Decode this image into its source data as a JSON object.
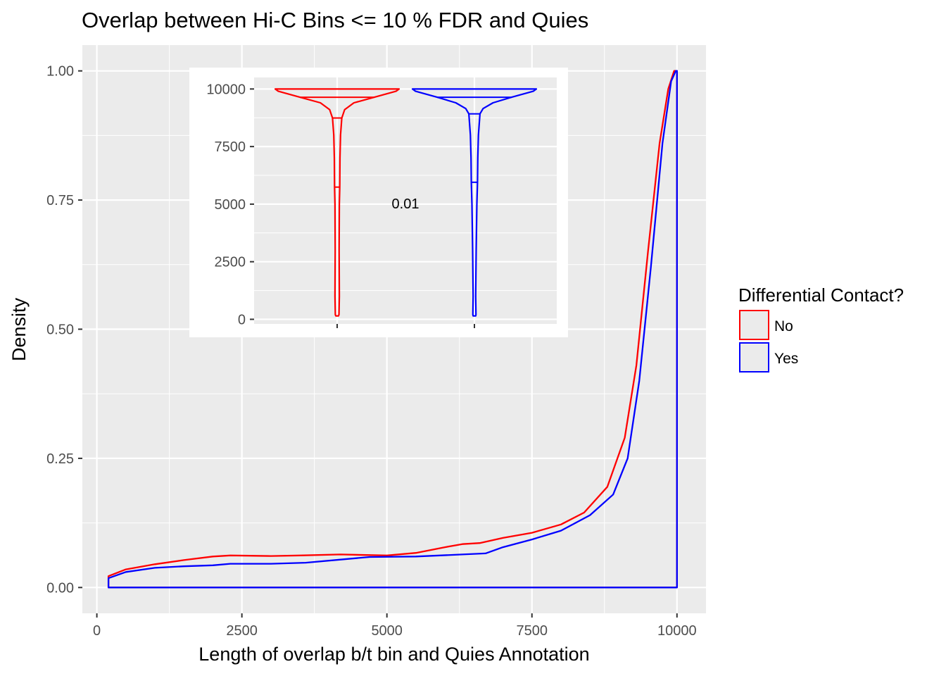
{
  "chart_data": [
    {
      "type": "area",
      "title": "Overlap between Hi-C Bins <= 10 % FDR and Quies",
      "xlabel": "Length of overlap b/t bin and Quies Annotation",
      "ylabel": "Density",
      "xlim": [
        -250,
        10500
      ],
      "ylim": [
        -0.05,
        1.05
      ],
      "x_ticks": [
        0,
        2500,
        5000,
        7500,
        10000
      ],
      "x_tick_labels": [
        "0",
        "2500",
        "5000",
        "7500",
        "10000"
      ],
      "y_ticks": [
        0,
        0.25,
        0.5,
        0.75,
        1.0
      ],
      "y_tick_labels": [
        "0.00",
        "0.25",
        "0.50",
        "0.75",
        "1.00"
      ],
      "grid": true,
      "legend": {
        "title": "Differential Contact?",
        "position": "right",
        "entries": [
          "No",
          "Yes"
        ]
      },
      "series": [
        {
          "name": "No",
          "color": "#ff0000",
          "points": [
            [
              200,
              0.022
            ],
            [
              500,
              0.035
            ],
            [
              1000,
              0.045
            ],
            [
              1500,
              0.053
            ],
            [
              2000,
              0.06
            ],
            [
              2300,
              0.062
            ],
            [
              3000,
              0.061
            ],
            [
              3500,
              0.062
            ],
            [
              4200,
              0.064
            ],
            [
              5000,
              0.062
            ],
            [
              5500,
              0.067
            ],
            [
              6000,
              0.078
            ],
            [
              6300,
              0.084
            ],
            [
              6600,
              0.086
            ],
            [
              7000,
              0.096
            ],
            [
              7500,
              0.106
            ],
            [
              8000,
              0.122
            ],
            [
              8400,
              0.145
            ],
            [
              8800,
              0.195
            ],
            [
              9100,
              0.29
            ],
            [
              9300,
              0.43
            ],
            [
              9500,
              0.65
            ],
            [
              9700,
              0.86
            ],
            [
              9850,
              0.965
            ],
            [
              9950,
              1.0
            ],
            [
              10000,
              1.0
            ],
            [
              10000,
              0.0
            ],
            [
              200,
              0.0
            ]
          ]
        },
        {
          "name": "Yes",
          "color": "#0000ff",
          "points": [
            [
              200,
              0.018
            ],
            [
              500,
              0.03
            ],
            [
              1000,
              0.038
            ],
            [
              1500,
              0.041
            ],
            [
              2000,
              0.043
            ],
            [
              2300,
              0.046
            ],
            [
              3000,
              0.046
            ],
            [
              3600,
              0.048
            ],
            [
              4200,
              0.054
            ],
            [
              4700,
              0.059
            ],
            [
              5500,
              0.06
            ],
            [
              6300,
              0.064
            ],
            [
              6700,
              0.066
            ],
            [
              7000,
              0.078
            ],
            [
              7500,
              0.093
            ],
            [
              8000,
              0.11
            ],
            [
              8500,
              0.14
            ],
            [
              8900,
              0.18
            ],
            [
              9150,
              0.25
            ],
            [
              9350,
              0.4
            ],
            [
              9550,
              0.62
            ],
            [
              9750,
              0.86
            ],
            [
              9900,
              0.98
            ],
            [
              9980,
              1.0
            ],
            [
              10000,
              1.0
            ],
            [
              10000,
              0.0
            ],
            [
              200,
              0.0
            ]
          ]
        }
      ]
    },
    {
      "type": "violin",
      "inset": true,
      "ylim": [
        -200,
        10500
      ],
      "y_ticks": [
        0,
        2500,
        5000,
        7500,
        10000
      ],
      "y_tick_labels": [
        "0",
        "2500",
        "5000",
        "7500",
        "10000"
      ],
      "annotation": "0.01",
      "violins": [
        {
          "group": "No",
          "color": "#ff0000",
          "quantiles": [
            5740,
            8740,
            9640
          ],
          "profile": [
            [
              10000,
              1.0
            ],
            [
              9900,
              0.95
            ],
            [
              9640,
              0.6
            ],
            [
              9400,
              0.27
            ],
            [
              9100,
              0.12
            ],
            [
              8740,
              0.075
            ],
            [
              8000,
              0.055
            ],
            [
              7000,
              0.045
            ],
            [
              5740,
              0.042
            ],
            [
              5000,
              0.035
            ],
            [
              3000,
              0.032
            ],
            [
              1000,
              0.035
            ],
            [
              200,
              0.03
            ],
            [
              150,
              0.02
            ]
          ]
        },
        {
          "group": "Yes",
          "color": "#0000ff",
          "quantiles": [
            5950,
            8920,
            9640
          ],
          "profile": [
            [
              10000,
              1.0
            ],
            [
              9900,
              0.95
            ],
            [
              9640,
              0.6
            ],
            [
              9400,
              0.3
            ],
            [
              9150,
              0.14
            ],
            [
              8920,
              0.09
            ],
            [
              8000,
              0.065
            ],
            [
              7000,
              0.055
            ],
            [
              5950,
              0.05
            ],
            [
              5000,
              0.04
            ],
            [
              3000,
              0.028
            ],
            [
              1000,
              0.02
            ],
            [
              200,
              0.025
            ],
            [
              150,
              0.02
            ]
          ]
        }
      ]
    }
  ]
}
